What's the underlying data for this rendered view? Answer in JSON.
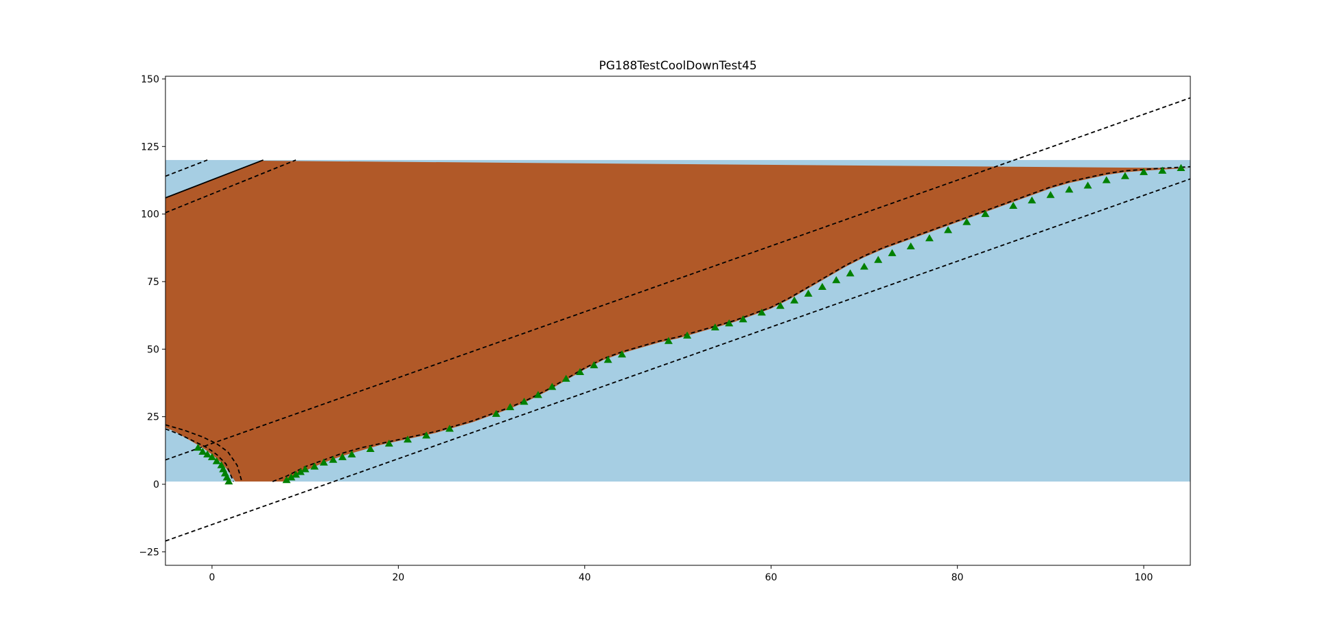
{
  "chart_data": {
    "type": "area",
    "title": "PG188TestCoolDownTest45",
    "xlabel": "",
    "ylabel": "",
    "xlim": [
      -5,
      105
    ],
    "ylim": [
      -30,
      151
    ],
    "xticks": [
      0,
      20,
      40,
      60,
      80,
      100
    ],
    "yticks": [
      -25,
      0,
      25,
      50,
      75,
      100,
      125,
      150
    ],
    "grid": false,
    "colors": {
      "cool_region": "#a6cee3",
      "warm_region": "#b15928",
      "marker": "#008000",
      "line": "#000000"
    },
    "background_band": {
      "x": [
        -5,
        105
      ],
      "y": [
        1,
        120
      ]
    },
    "boundary_curve": {
      "x": [
        8,
        10,
        12,
        14,
        16,
        18,
        20,
        22,
        24,
        26,
        28,
        30,
        32,
        34,
        36,
        38,
        40,
        42,
        44,
        46,
        48,
        50,
        52,
        54,
        56,
        58,
        60,
        62,
        64,
        66,
        68,
        70,
        72,
        74,
        76,
        78,
        80,
        82,
        84,
        86,
        88,
        90,
        92,
        94,
        96,
        98,
        100,
        102,
        105
      ],
      "y": [
        1,
        5,
        8,
        10.5,
        12.5,
        14.5,
        16,
        17.5,
        19,
        21,
        23,
        25.5,
        28,
        31,
        34.5,
        38.5,
        42.5,
        46,
        48.5,
        50.5,
        52.5,
        54,
        56,
        58,
        60,
        62.5,
        65,
        68.5,
        72.5,
        76.5,
        80.5,
        84,
        87,
        89.5,
        92,
        94.5,
        97,
        99.5,
        102,
        104.5,
        107,
        109.5,
        111.5,
        113,
        114.5,
        115.5,
        116,
        116.5,
        117
      ]
    },
    "left_curve": {
      "x": [
        -5,
        -4,
        -3,
        -2,
        -1,
        0,
        0.5,
        1,
        1.5,
        2,
        2.5
      ],
      "y": [
        21,
        19.5,
        17.5,
        15.5,
        13.5,
        11,
        9.5,
        8,
        6,
        3.5,
        1
      ]
    },
    "marker_points": {
      "x": [
        -1.5,
        -1,
        -0.5,
        0,
        0.5,
        1,
        1.2,
        1.4,
        1.6,
        1.8,
        8,
        8.5,
        9,
        9.5,
        10,
        11,
        12,
        13,
        14,
        15,
        17,
        19,
        21,
        23,
        25.5,
        30.5,
        32,
        33.5,
        35,
        36.5,
        38,
        39.5,
        41,
        42.5,
        44,
        49,
        51,
        54,
        55.5,
        57,
        59,
        61,
        62.5,
        64,
        65.5,
        67,
        68.5,
        70,
        71.5,
        73,
        75,
        77,
        79,
        81,
        83,
        86,
        88,
        90,
        92,
        94,
        96,
        98,
        100,
        102,
        104
      ],
      "y": [
        13.5,
        12,
        11,
        10,
        8.5,
        7,
        5.5,
        4,
        2.5,
        1,
        1.5,
        2.5,
        3.5,
        4.5,
        5.5,
        6.5,
        8,
        9,
        10,
        11,
        13,
        15,
        16.5,
        18,
        20.5,
        26,
        28.5,
        30.5,
        33,
        36,
        39,
        41.5,
        44,
        46,
        48,
        53,
        55,
        58,
        59.5,
        61,
        63.5,
        66,
        68,
        70.5,
        73,
        75.5,
        78,
        80.5,
        83,
        85.5,
        88,
        91,
        94,
        97,
        100,
        103,
        105,
        107,
        109,
        110.5,
        112.5,
        114,
        115.5,
        116,
        117
      ]
    },
    "lines": [
      {
        "style": "dashed",
        "x": [
          -5,
          105
        ],
        "y": [
          9,
          143
        ]
      },
      {
        "style": "dashed",
        "x": [
          -5,
          105
        ],
        "y": [
          -21,
          113
        ]
      },
      {
        "style": "dashed",
        "x": [
          -5,
          9
        ],
        "y": [
          100.5,
          120
        ]
      },
      {
        "style": "dashed",
        "x": [
          -5,
          -0.5
        ],
        "y": [
          114,
          120
        ]
      },
      {
        "style": "solid",
        "x": [
          -5,
          5.5
        ],
        "y": [
          106,
          120
        ]
      },
      {
        "style": "dashed",
        "x": [
          -5,
          -3.5,
          -2,
          -0.5,
          0.5,
          1.5,
          2.3
        ],
        "y": [
          20.5,
          18.5,
          16,
          13.5,
          11,
          7.5,
          1
        ]
      },
      {
        "style": "dashed",
        "x": [
          -5,
          -3,
          -1,
          0.5,
          1.7,
          2.7,
          3.2
        ],
        "y": [
          22,
          20,
          17.5,
          15,
          12,
          7,
          1
        ]
      },
      {
        "style": "dashed",
        "x": [
          6.5,
          8,
          10,
          12,
          14,
          16,
          18,
          20,
          22,
          24,
          26,
          28,
          30,
          32,
          34,
          36,
          38,
          40,
          42,
          44,
          46,
          48,
          50,
          52,
          54,
          56,
          58,
          60,
          62,
          64,
          66,
          68,
          70,
          72,
          74,
          76,
          78,
          80,
          82,
          84,
          86,
          88,
          90,
          92,
          94,
          96,
          98,
          100,
          102,
          105
        ],
        "y": [
          1,
          3,
          6.5,
          9,
          11.5,
          13.5,
          15,
          16.5,
          18,
          19.5,
          21.5,
          23.5,
          26,
          28.5,
          31.5,
          35,
          39,
          43,
          46.5,
          49,
          51,
          53,
          54.5,
          56.5,
          58.5,
          60.5,
          63,
          65.5,
          69,
          73,
          77,
          81,
          84.5,
          87.5,
          90,
          92.5,
          95,
          97.5,
          100,
          102.5,
          105,
          107.5,
          110,
          112,
          113.5,
          115,
          116,
          116.5,
          117,
          117.5
        ]
      }
    ]
  }
}
